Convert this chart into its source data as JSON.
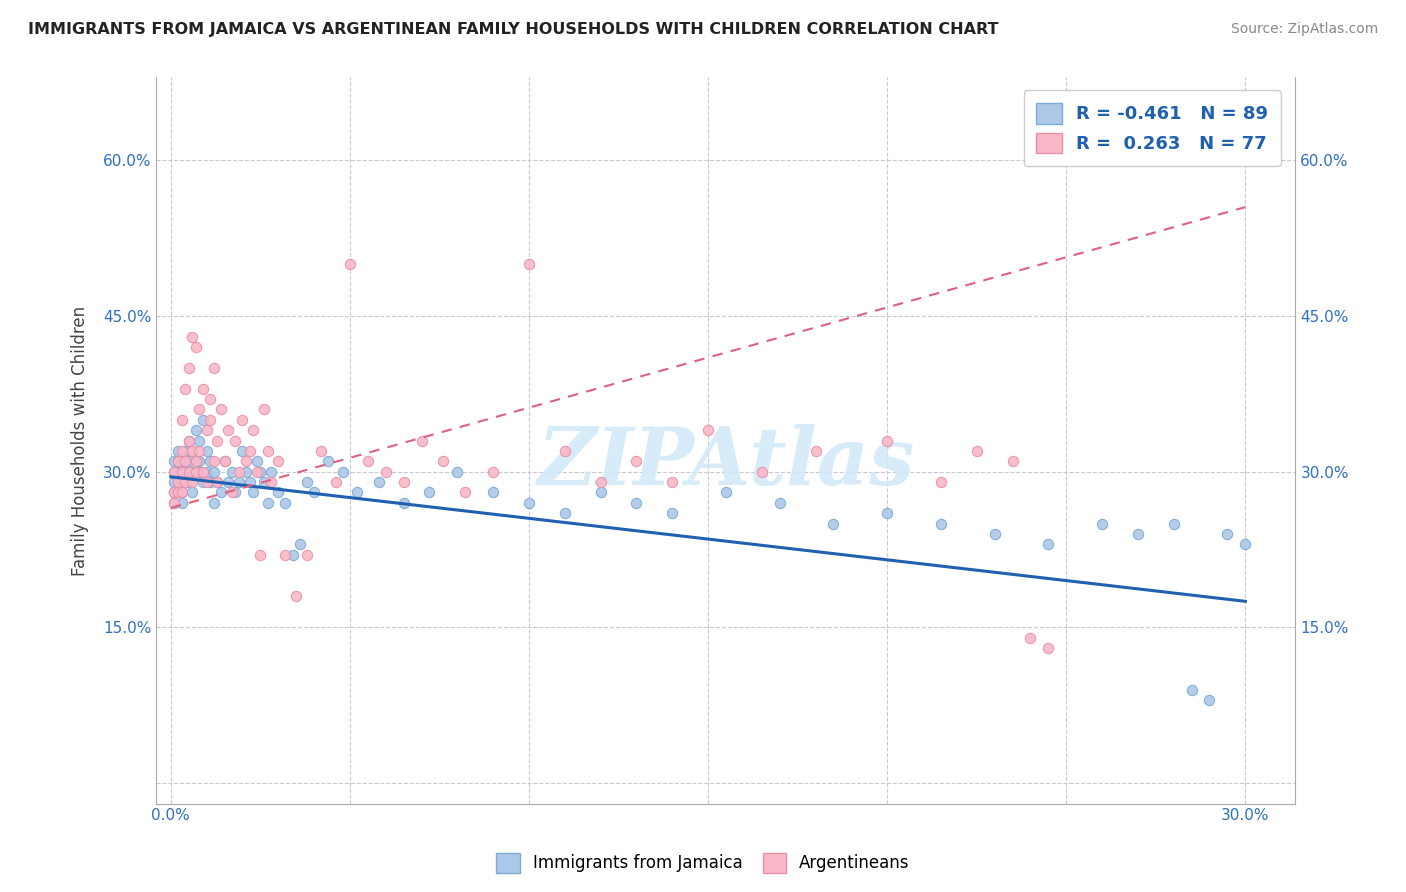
{
  "title": "IMMIGRANTS FROM JAMAICA VS ARGENTINEAN FAMILY HOUSEHOLDS WITH CHILDREN CORRELATION CHART",
  "source": "Source: ZipAtlas.com",
  "ylabel": "Family Households with Children",
  "xlim": [
    -0.004,
    0.314
  ],
  "ylim": [
    -0.02,
    0.68
  ],
  "x_tick_vals": [
    0.0,
    0.05,
    0.1,
    0.15,
    0.2,
    0.25,
    0.3
  ],
  "x_tick_labels": [
    "0.0%",
    "",
    "",
    "",
    "",
    "",
    "30.0%"
  ],
  "y_tick_vals": [
    0.0,
    0.15,
    0.3,
    0.45,
    0.6
  ],
  "y_tick_labels_left": [
    "",
    "15.0%",
    "30.0%",
    "45.0%",
    "60.0%"
  ],
  "y_tick_labels_right": [
    "",
    "15.0%",
    "30.0%",
    "45.0%",
    "60.0%"
  ],
  "jam_line_x": [
    0.0,
    0.3
  ],
  "jam_line_y": [
    0.295,
    0.175
  ],
  "arg_line_x": [
    0.0,
    0.3
  ],
  "arg_line_y": [
    0.265,
    0.555
  ],
  "color_blue_fill": "#adc8e8",
  "color_blue_edge": "#7baad4",
  "color_pink_fill": "#f9b8c8",
  "color_pink_edge": "#e890a8",
  "color_blue_line": "#2060b0",
  "color_pink_line": "#e06080",
  "watermark_color": "#d0e8f8",
  "watermark_text": "ZIPAtlas",
  "legend_label1": "R = -0.461   N = 89",
  "legend_label2": "R =  0.263   N = 77",
  "bottom_label1": "Immigrants from Jamaica",
  "bottom_label2": "Argentineans",
  "jamaica_x": [
    0.001,
    0.001,
    0.001,
    0.001,
    0.001,
    0.002,
    0.002,
    0.002,
    0.002,
    0.002,
    0.003,
    0.003,
    0.003,
    0.003,
    0.003,
    0.004,
    0.004,
    0.004,
    0.004,
    0.005,
    0.005,
    0.005,
    0.005,
    0.006,
    0.006,
    0.006,
    0.007,
    0.007,
    0.007,
    0.008,
    0.008,
    0.008,
    0.009,
    0.009,
    0.01,
    0.01,
    0.011,
    0.011,
    0.012,
    0.012,
    0.013,
    0.014,
    0.015,
    0.016,
    0.017,
    0.018,
    0.019,
    0.02,
    0.021,
    0.022,
    0.023,
    0.024,
    0.025,
    0.026,
    0.027,
    0.028,
    0.03,
    0.032,
    0.034,
    0.036,
    0.038,
    0.04,
    0.044,
    0.048,
    0.052,
    0.058,
    0.065,
    0.072,
    0.08,
    0.09,
    0.1,
    0.11,
    0.12,
    0.13,
    0.14,
    0.155,
    0.17,
    0.185,
    0.2,
    0.215,
    0.23,
    0.245,
    0.26,
    0.27,
    0.28,
    0.285,
    0.29,
    0.295,
    0.3
  ],
  "jamaica_y": [
    0.3,
    0.29,
    0.31,
    0.28,
    0.27,
    0.3,
    0.29,
    0.31,
    0.28,
    0.32,
    0.29,
    0.31,
    0.3,
    0.28,
    0.27,
    0.32,
    0.31,
    0.29,
    0.3,
    0.33,
    0.3,
    0.29,
    0.31,
    0.32,
    0.3,
    0.28,
    0.34,
    0.31,
    0.3,
    0.33,
    0.31,
    0.3,
    0.35,
    0.29,
    0.32,
    0.3,
    0.29,
    0.31,
    0.3,
    0.27,
    0.29,
    0.28,
    0.31,
    0.29,
    0.3,
    0.28,
    0.29,
    0.32,
    0.3,
    0.29,
    0.28,
    0.31,
    0.3,
    0.29,
    0.27,
    0.3,
    0.28,
    0.27,
    0.22,
    0.23,
    0.29,
    0.28,
    0.31,
    0.3,
    0.28,
    0.29,
    0.27,
    0.28,
    0.3,
    0.28,
    0.27,
    0.26,
    0.28,
    0.27,
    0.26,
    0.28,
    0.27,
    0.25,
    0.26,
    0.25,
    0.24,
    0.23,
    0.25,
    0.24,
    0.25,
    0.09,
    0.08,
    0.24,
    0.23
  ],
  "argentina_x": [
    0.001,
    0.001,
    0.001,
    0.002,
    0.002,
    0.002,
    0.003,
    0.003,
    0.003,
    0.003,
    0.004,
    0.004,
    0.004,
    0.005,
    0.005,
    0.005,
    0.006,
    0.006,
    0.006,
    0.007,
    0.007,
    0.007,
    0.008,
    0.008,
    0.009,
    0.009,
    0.01,
    0.01,
    0.011,
    0.011,
    0.012,
    0.012,
    0.013,
    0.013,
    0.014,
    0.015,
    0.016,
    0.017,
    0.018,
    0.019,
    0.02,
    0.021,
    0.022,
    0.023,
    0.024,
    0.025,
    0.026,
    0.027,
    0.028,
    0.03,
    0.032,
    0.035,
    0.038,
    0.042,
    0.046,
    0.05,
    0.055,
    0.06,
    0.065,
    0.07,
    0.076,
    0.082,
    0.09,
    0.1,
    0.11,
    0.12,
    0.13,
    0.14,
    0.15,
    0.165,
    0.18,
    0.2,
    0.215,
    0.225,
    0.235,
    0.24,
    0.245
  ],
  "argentina_y": [
    0.28,
    0.3,
    0.27,
    0.31,
    0.29,
    0.28,
    0.35,
    0.3,
    0.32,
    0.28,
    0.38,
    0.31,
    0.29,
    0.4,
    0.3,
    0.33,
    0.43,
    0.29,
    0.32,
    0.42,
    0.31,
    0.3,
    0.36,
    0.32,
    0.38,
    0.3,
    0.34,
    0.29,
    0.37,
    0.35,
    0.31,
    0.4,
    0.33,
    0.29,
    0.36,
    0.31,
    0.34,
    0.28,
    0.33,
    0.3,
    0.35,
    0.31,
    0.32,
    0.34,
    0.3,
    0.22,
    0.36,
    0.32,
    0.29,
    0.31,
    0.22,
    0.18,
    0.22,
    0.32,
    0.29,
    0.5,
    0.31,
    0.3,
    0.29,
    0.33,
    0.31,
    0.28,
    0.3,
    0.5,
    0.32,
    0.29,
    0.31,
    0.29,
    0.34,
    0.3,
    0.32,
    0.33,
    0.29,
    0.32,
    0.31,
    0.14,
    0.13
  ]
}
